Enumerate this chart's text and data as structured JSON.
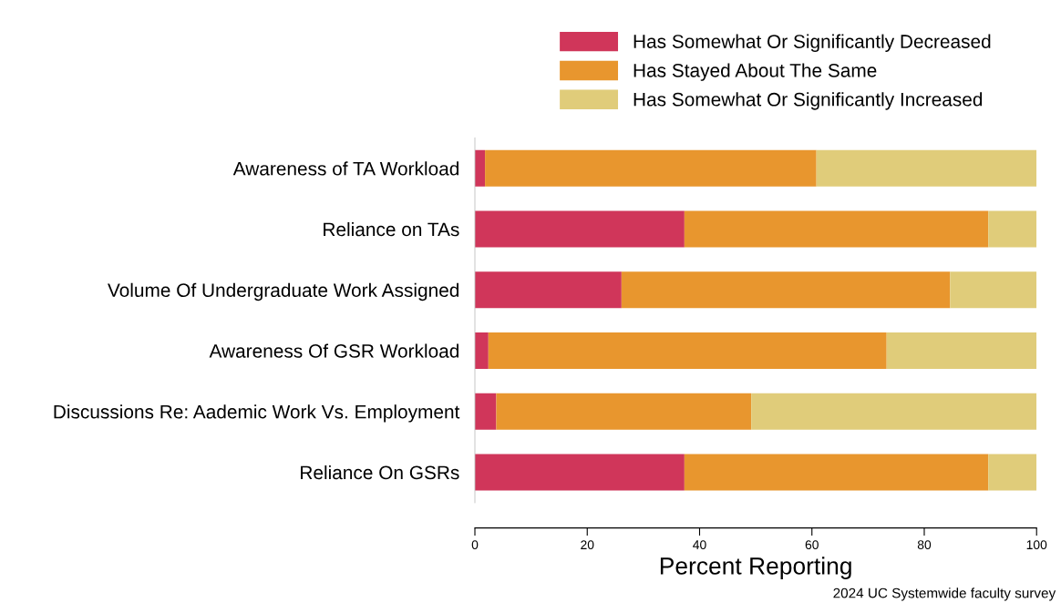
{
  "chart_data": {
    "type": "bar",
    "orientation": "horizontal",
    "stacked": true,
    "categories": [
      "Awareness of TA Workload",
      "Reliance on TAs",
      "Volume Of Undergraduate Work Assigned",
      "Awareness Of GSR Workload",
      "Discussions Re: Aademic Work Vs. Employment",
      "Reliance On GSRs"
    ],
    "series": [
      {
        "name": "Has Somewhat Or Significantly Decreased",
        "color": "#d0365a",
        "values": [
          1.8,
          37.3,
          26.1,
          2.4,
          3.8,
          37.3
        ]
      },
      {
        "name": "Has Stayed About The Same",
        "color": "#e8962e",
        "values": [
          59.0,
          54.1,
          58.5,
          70.9,
          45.4,
          54.1
        ]
      },
      {
        "name": "Has Somewhat Or Significantly Increased",
        "color": "#e0cc7a",
        "values": [
          39.2,
          8.6,
          15.4,
          26.7,
          50.8,
          8.6
        ]
      }
    ],
    "xlabel": "Percent Reporting",
    "xlim": [
      0,
      100
    ],
    "xticks": [
      0,
      20,
      40,
      60,
      80,
      100
    ],
    "grid": false,
    "legend": "top right",
    "annotations": [
      "2024 UC Systemwide faculty survey"
    ]
  }
}
